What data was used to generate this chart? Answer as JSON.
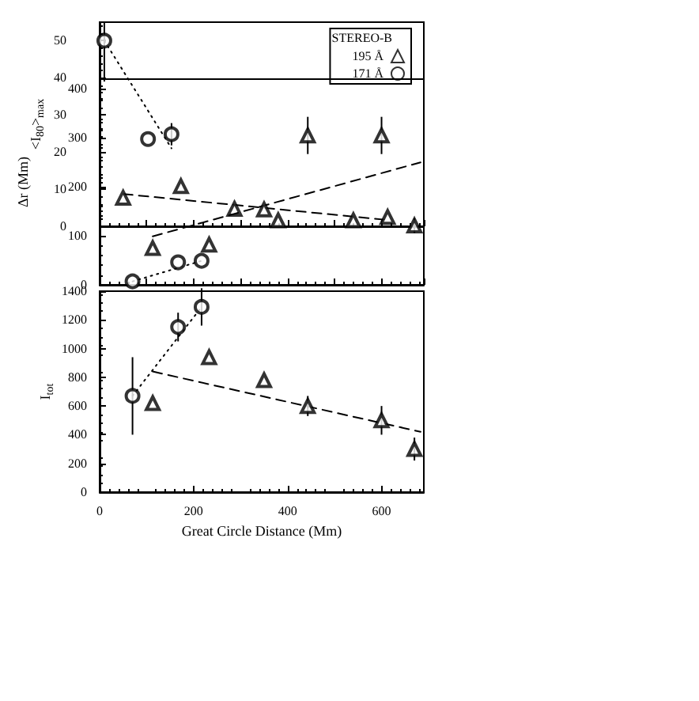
{
  "chart_data": [
    {
      "type": "scatter",
      "ylabel": "<I$_{80}$>$_{max}$",
      "xlim": [
        0,
        690
      ],
      "ylim": [
        0,
        55
      ],
      "yticks": [
        0,
        10,
        20,
        30,
        40,
        50
      ],
      "tick_labels": "y",
      "grid": false,
      "legend": "top right",
      "legend_title": "STEREO-B",
      "series": [
        {
          "name": "195 Å",
          "marker": "triangle",
          "color": "#000000",
          "x": [
            50,
            173,
            287,
            380,
            540,
            613
          ],
          "values": [
            7.7,
            10.8,
            4.7,
            1.6,
            1.6,
            2.5
          ]
        },
        {
          "name": "171 Å",
          "marker": "circle",
          "color": "#000000",
          "x": [
            10,
            103,
            153
          ],
          "values": [
            50,
            23.5,
            24.8
          ],
          "errors": [
            [
              39,
              55
            ],
            null,
            3
          ]
        },
        {
          "type": "line",
          "line_style": "dashed",
          "marker": "none",
          "color": "#000000",
          "x": [
            50,
            613
          ],
          "values": [
            8.7,
            1.7
          ]
        },
        {
          "type": "line",
          "line_style": "dotted",
          "marker": "none",
          "color": "#000000",
          "x": [
            10,
            153
          ],
          "values": [
            50,
            21
          ]
        }
      ]
    },
    {
      "type": "scatter",
      "ylabel": "Δr (Mm)",
      "xlim": [
        0,
        690
      ],
      "ylim": [
        0,
        420
      ],
      "yticks": [
        0,
        100,
        200,
        300,
        400
      ],
      "tick_labels": "y",
      "grid": false,
      "legend": false,
      "series": [
        {
          "marker": "triangle",
          "color": "#000000",
          "x": [
            113,
            233,
            350,
            443,
            600,
            670
          ],
          "values": [
            75,
            82,
            154,
            305,
            305,
            121
          ],
          "errors": [
            null,
            null,
            null,
            38,
            38,
            15
          ]
        },
        {
          "marker": "circle",
          "color": "#000000",
          "x": [
            70,
            167,
            217
          ],
          "values": [
            7,
            46,
            49
          ]
        },
        {
          "type": "line",
          "line_style": "dashed",
          "marker": "none",
          "color": "#000000",
          "x": [
            113,
            683
          ],
          "values": [
            99,
            250
          ]
        },
        {
          "type": "line",
          "line_style": "dotted",
          "marker": "none",
          "color": "#000000",
          "x": [
            70,
            217
          ],
          "values": [
            7,
            49
          ]
        }
      ]
    },
    {
      "type": "scatter",
      "ylabel": "I$_{tot}$",
      "xlabel": "Great Circle Distance (Mm)",
      "xlim": [
        0,
        690
      ],
      "xticks": [
        0,
        200,
        400,
        600
      ],
      "ylim": [
        0,
        1400
      ],
      "yticks": [
        0,
        200,
        400,
        600,
        800,
        1000,
        1200,
        1400
      ],
      "grid": false,
      "legend": false,
      "series": [
        {
          "marker": "triangle",
          "color": "#000000",
          "x": [
            113,
            233,
            350,
            443,
            600,
            670
          ],
          "values": [
            620,
            940,
            780,
            600,
            500,
            300
          ],
          "errors": [
            null,
            null,
            null,
            70,
            100,
            80
          ]
        },
        {
          "marker": "circle",
          "color": "#000000",
          "x": [
            70,
            167,
            217
          ],
          "values": [
            670,
            1150,
            1290
          ],
          "errors": [
            270,
            100,
            130
          ]
        },
        {
          "type": "line",
          "line_style": "dashed",
          "marker": "none",
          "color": "#000000",
          "x": [
            113,
            683
          ],
          "values": [
            840,
            420
          ]
        },
        {
          "type": "line",
          "line_style": "dotted",
          "marker": "none",
          "color": "#000000",
          "x": [
            70,
            217
          ],
          "values": [
            670,
            1290
          ]
        }
      ]
    }
  ]
}
